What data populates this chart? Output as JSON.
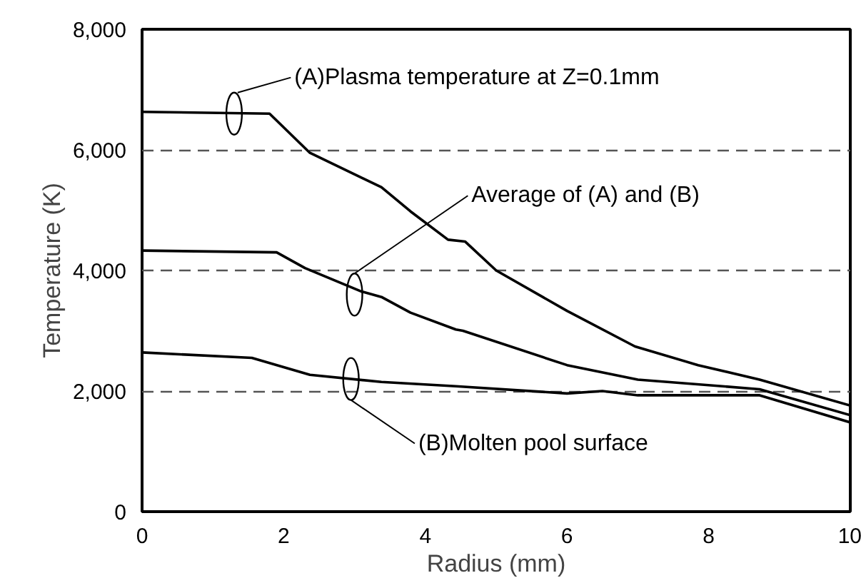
{
  "chart_data": {
    "type": "line",
    "xlabel": "Radius (mm)",
    "ylabel": "Temperature (K)",
    "xlim": [
      0,
      10
    ],
    "xticks": [
      0,
      2,
      4,
      6,
      8,
      10
    ],
    "ylim": [
      0,
      8000
    ],
    "yticks": [
      {
        "value": 0,
        "label": "0"
      },
      {
        "value": 2000,
        "label": "2,000"
      },
      {
        "value": 4000,
        "label": "4,000"
      },
      {
        "value": 6000,
        "label": "6,000"
      },
      {
        "value": 8000,
        "label": "8,000"
      }
    ],
    "grid": "y",
    "marker": "none",
    "line_style": "solid",
    "series": [
      {
        "color": "#000000",
        "x": [
          0,
          1.8,
          2.37,
          3.38,
          3.79,
          4.32,
          4.56,
          5.0,
          6.0,
          6.96,
          7.85,
          8.72,
          10
        ],
        "values": [
          6630,
          6600,
          5950,
          5380,
          4980,
          4510,
          4480,
          4000,
          3330,
          2740,
          2430,
          2190,
          1760
        ]
      },
      {
        "color": "#000000",
        "x": [
          0,
          1.9,
          2.3,
          3.1,
          3.38,
          3.79,
          4.43,
          4.53,
          6.0,
          7.0,
          8.72,
          10
        ],
        "values": [
          4330,
          4300,
          4040,
          3650,
          3560,
          3300,
          3020,
          3000,
          2430,
          2190,
          2030,
          1600
        ]
      },
      {
        "color": "#000000",
        "x": [
          0,
          1.55,
          2.37,
          3.38,
          4.43,
          6.0,
          6.5,
          7.0,
          8.72,
          10
        ],
        "values": [
          2640,
          2550,
          2270,
          2150,
          2080,
          1960,
          2000,
          1930,
          1930,
          1480
        ]
      }
    ],
    "annotations": [
      {
        "text": "(A)Plasma temperature at Z=0.1mm",
        "x": 1.3,
        "y": 6600
      },
      "Average of (A) and (B)",
      "(B)Molten pool surface"
    ]
  }
}
